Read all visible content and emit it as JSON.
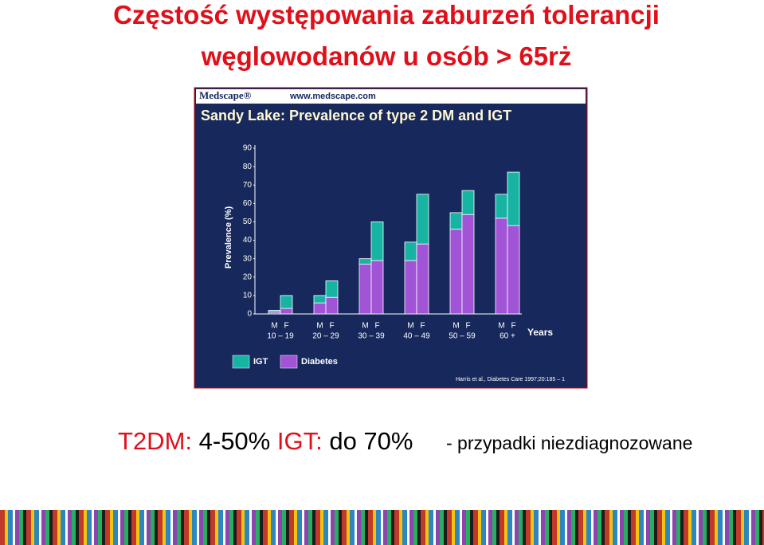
{
  "slide": {
    "title_lines": [
      "Częstość występowania zaburzeń tolerancji",
      "węglowodanów u osób > 65rż"
    ],
    "summary": {
      "t2dm_label": "T2DM:",
      "t2dm_value": "4-50%",
      "igt_label": "IGT:",
      "igt_value": "do 70%",
      "note": "- przypadki niezdiagnozowane"
    }
  },
  "chart_data": {
    "type": "stacked_bar",
    "brand": "Medscape®",
    "url": "www.medscape.com",
    "title": "Sandy Lake: Prevalence of type 2 DM and IGT",
    "y_label": "Prevalence (%)",
    "x_label": "Years",
    "categories": [
      "M",
      "F",
      "M",
      "F",
      "M",
      "F",
      "M",
      "F",
      "M",
      "F",
      "M",
      "F"
    ],
    "groups": [
      "10 – 19",
      "20 – 29",
      "30 – 39",
      "40 – 49",
      "50 – 59",
      "60 +"
    ],
    "series": [
      {
        "name": "IGT",
        "color": "#17b3a3",
        "values": [
          1,
          7,
          4,
          9,
          3,
          21,
          10,
          27,
          9,
          13,
          13,
          29
        ]
      },
      {
        "name": "Diabetes",
        "color": "#a155d6",
        "values": [
          1,
          3,
          6,
          9,
          27,
          29,
          29,
          38,
          46,
          54,
          52,
          48
        ]
      }
    ],
    "ylim": [
      0,
      90
    ],
    "yticks": [
      0,
      10,
      20,
      30,
      40,
      50,
      60,
      70,
      80,
      90
    ],
    "source": "Harris et al., Diabetes Care 1997;20:185 – 1"
  }
}
